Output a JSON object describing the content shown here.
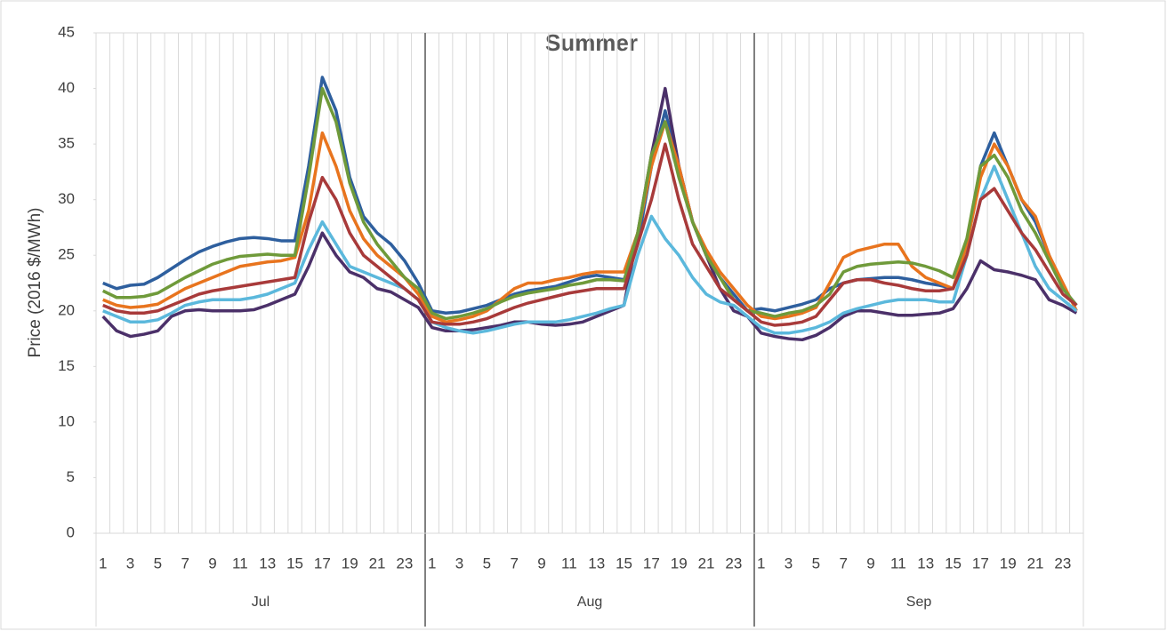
{
  "chart_data": {
    "type": "line",
    "title": "Summer",
    "y_label": "Price (2016 $/MWh)",
    "categories": [
      "1",
      null,
      "3",
      null,
      "5",
      null,
      "7",
      null,
      "9",
      null,
      "11",
      null,
      "13",
      null,
      "15",
      null,
      "17",
      null,
      "19",
      null,
      "21",
      null,
      "23",
      null,
      "1",
      null,
      "3",
      null,
      "5",
      null,
      "7",
      null,
      "9",
      null,
      "11",
      null,
      "13",
      null,
      "15",
      null,
      "17",
      null,
      "19",
      null,
      "21",
      null,
      "23",
      null,
      "1",
      null,
      "3",
      null,
      "5",
      null,
      "7",
      null,
      "9",
      null,
      "11",
      null,
      "13",
      null,
      "15",
      null,
      "17",
      null,
      "19",
      null,
      "21",
      null,
      "23",
      null
    ],
    "groups": [
      "Jul",
      "Aug",
      "Sep"
    ],
    "ylim": [
      0,
      45
    ],
    "yticks": [
      0,
      5,
      10,
      15,
      20,
      25,
      30,
      35,
      40,
      45
    ],
    "vertical_grid": true,
    "series": [
      {
        "color": "#2e5f9e",
        "values": [
          22.5,
          22,
          22.3,
          22.4,
          23,
          23.8,
          24.6,
          25.3,
          25.8,
          26.2,
          26.5,
          26.6,
          26.5,
          26.3,
          26.3,
          33,
          41,
          38,
          32,
          28.5,
          27,
          26,
          24.5,
          22.5,
          20,
          19.8,
          19.9,
          20.2,
          20.5,
          21,
          21.5,
          21.8,
          22,
          22.2,
          22.6,
          23,
          23.2,
          23,
          22.8,
          26,
          33,
          38,
          33,
          28,
          25,
          23,
          21.5,
          20,
          20.2,
          20,
          20.3,
          20.6,
          21,
          22,
          22.5,
          22.8,
          22.9,
          23,
          23,
          22.8,
          22.5,
          22.3,
          22,
          26,
          33,
          36,
          33,
          30,
          28,
          25,
          22,
          20.5
        ]
      },
      {
        "color": "#4b3069",
        "values": [
          19.5,
          18.2,
          17.7,
          17.9,
          18.2,
          19.5,
          20,
          20.1,
          20,
          20,
          20,
          20.1,
          20.5,
          21,
          21.5,
          24,
          27,
          25,
          23.5,
          23,
          22,
          21.7,
          21,
          20.3,
          18.5,
          18.2,
          18.2,
          18.3,
          18.5,
          18.7,
          19,
          19,
          18.8,
          18.7,
          18.8,
          19,
          19.5,
          20,
          20.5,
          27,
          34,
          40,
          33,
          28,
          25,
          22,
          20,
          19.5,
          18,
          17.7,
          17.5,
          17.4,
          17.8,
          18.5,
          19.5,
          20,
          20,
          19.8,
          19.6,
          19.6,
          19.7,
          19.8,
          20.2,
          22,
          24.5,
          23.7,
          23.5,
          23.2,
          22.8,
          21,
          20.5,
          19.8
        ]
      },
      {
        "color": "#e8741e",
        "values": [
          21,
          20.5,
          20.3,
          20.4,
          20.6,
          21.3,
          22,
          22.5,
          23,
          23.5,
          24,
          24.2,
          24.4,
          24.5,
          24.8,
          29,
          36,
          33,
          29,
          26.5,
          25,
          24,
          23,
          21.5,
          19.5,
          19,
          19.2,
          19.5,
          20,
          21,
          22,
          22.5,
          22.5,
          22.8,
          23,
          23.3,
          23.5,
          23.5,
          23.5,
          27,
          33,
          37,
          33,
          28,
          25.5,
          23.5,
          22,
          20.5,
          19.5,
          19.3,
          19.5,
          19.8,
          20.3,
          22.5,
          24.8,
          25.4,
          25.7,
          26,
          26,
          24,
          23,
          22.5,
          22,
          26,
          32,
          35,
          33,
          30,
          28.5,
          25,
          22.5,
          20
        ]
      },
      {
        "color": "#5bb8dc",
        "values": [
          20,
          19.5,
          19,
          19,
          19.2,
          19.8,
          20.5,
          20.8,
          21,
          21,
          21,
          21.2,
          21.5,
          22,
          22.5,
          25.5,
          28,
          26,
          24,
          23.5,
          23,
          22.5,
          22,
          21,
          19,
          18.5,
          18.2,
          18,
          18.2,
          18.5,
          18.8,
          19,
          19,
          19,
          19.2,
          19.5,
          19.8,
          20.2,
          20.5,
          25,
          28.5,
          26.5,
          25,
          23,
          21.5,
          20.8,
          20.5,
          19.5,
          18.5,
          18,
          18,
          18.2,
          18.5,
          19,
          19.8,
          20.2,
          20.5,
          20.8,
          21,
          21,
          21,
          20.8,
          20.8,
          25,
          30,
          33,
          30,
          27,
          24,
          22,
          21,
          20
        ]
      },
      {
        "color": "#6f9a3a",
        "values": [
          21.8,
          21.2,
          21.2,
          21.3,
          21.6,
          22.3,
          23,
          23.6,
          24.2,
          24.6,
          24.9,
          25,
          25.1,
          25,
          25,
          32,
          40,
          37,
          31.5,
          28,
          26,
          24.5,
          23,
          22,
          19.8,
          19.3,
          19.5,
          19.8,
          20.2,
          20.8,
          21.3,
          21.6,
          21.8,
          22,
          22.3,
          22.5,
          22.8,
          22.8,
          22.7,
          27,
          34,
          37,
          32,
          28,
          25,
          23,
          21,
          20,
          19.8,
          19.5,
          19.8,
          20,
          20.5,
          21.5,
          23.5,
          24,
          24.2,
          24.3,
          24.4,
          24.3,
          24,
          23.6,
          23,
          26.5,
          33,
          34,
          32,
          29,
          27,
          24.5,
          22,
          20.5
        ]
      },
      {
        "color": "#a83a3a",
        "values": [
          20.5,
          20,
          19.8,
          19.8,
          20,
          20.5,
          21,
          21.5,
          21.8,
          22,
          22.2,
          22.4,
          22.6,
          22.8,
          23,
          28,
          32,
          30,
          27,
          25,
          24,
          23,
          22,
          21,
          19,
          18.8,
          18.8,
          19,
          19.3,
          19.8,
          20.3,
          20.7,
          21,
          21.3,
          21.6,
          21.8,
          22,
          22,
          22,
          26,
          30,
          35,
          30,
          26,
          24,
          22,
          21,
          20,
          19,
          18.7,
          18.8,
          19,
          19.5,
          21,
          22.5,
          22.8,
          22.8,
          22.5,
          22.3,
          22,
          21.8,
          21.8,
          22,
          25,
          30,
          31,
          29,
          27,
          25.5,
          23.5,
          21.5,
          20.5
        ]
      }
    ]
  }
}
